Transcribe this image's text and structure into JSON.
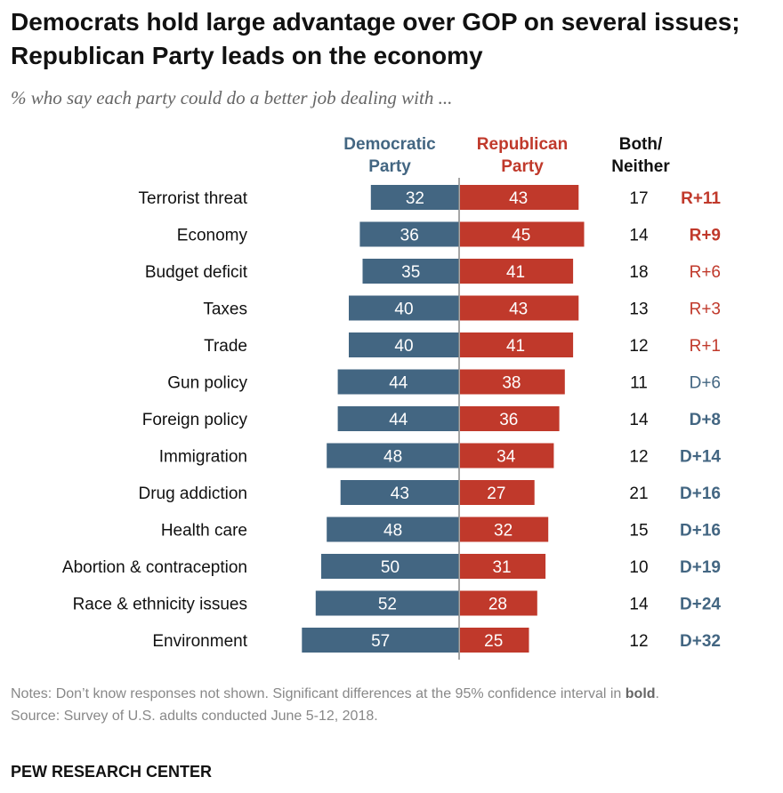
{
  "title": "Democrats hold large advantage over GOP on several issues; Republican Party leads on the economy",
  "subtitle": "% who say each party could do a better job dealing with ...",
  "notes_prefix": "Notes: Don’t know responses not shown. Significant differences at the 95% confidence interval in ",
  "notes_bold": "bold",
  "notes_suffix": ".",
  "source": "Source: Survey of U.S. adults conducted June 5-12, 2018.",
  "logo": "PEW RESEARCH CENTER",
  "colors": {
    "democratic": "#436682",
    "republican": "#C0392B",
    "neutral": "#111111"
  },
  "chart_data": {
    "type": "bar",
    "orientation": "horizontal-diverging",
    "column_headers": {
      "dem": [
        "Democratic",
        "Party"
      ],
      "rep": [
        "Republican",
        "Party"
      ],
      "both": [
        "Both/",
        "Neither"
      ]
    },
    "categories": [
      "Terrorist threat",
      "Economy",
      "Budget deficit",
      "Taxes",
      "Trade",
      "Gun policy",
      "Foreign policy",
      "Immigration",
      "Drug addiction",
      "Health care",
      "Abortion & contraception",
      "Race & ethnicity issues",
      "Environment"
    ],
    "series": [
      {
        "name": "Democratic Party",
        "values": [
          32,
          36,
          35,
          40,
          40,
          44,
          44,
          48,
          43,
          48,
          50,
          52,
          57
        ]
      },
      {
        "name": "Republican Party",
        "values": [
          43,
          45,
          41,
          43,
          41,
          38,
          36,
          34,
          27,
          32,
          31,
          28,
          25
        ]
      },
      {
        "name": "Both/Neither",
        "values": [
          17,
          14,
          18,
          13,
          12,
          11,
          14,
          12,
          21,
          15,
          10,
          14,
          12
        ]
      }
    ],
    "differences": [
      "R+11",
      "R+9",
      "R+6",
      "R+3",
      "R+1",
      "D+6",
      "D+8",
      "D+14",
      "D+16",
      "D+16",
      "D+19",
      "D+24",
      "D+32"
    ],
    "significant": [
      true,
      true,
      false,
      false,
      false,
      false,
      true,
      true,
      true,
      true,
      true,
      true,
      true
    ]
  }
}
